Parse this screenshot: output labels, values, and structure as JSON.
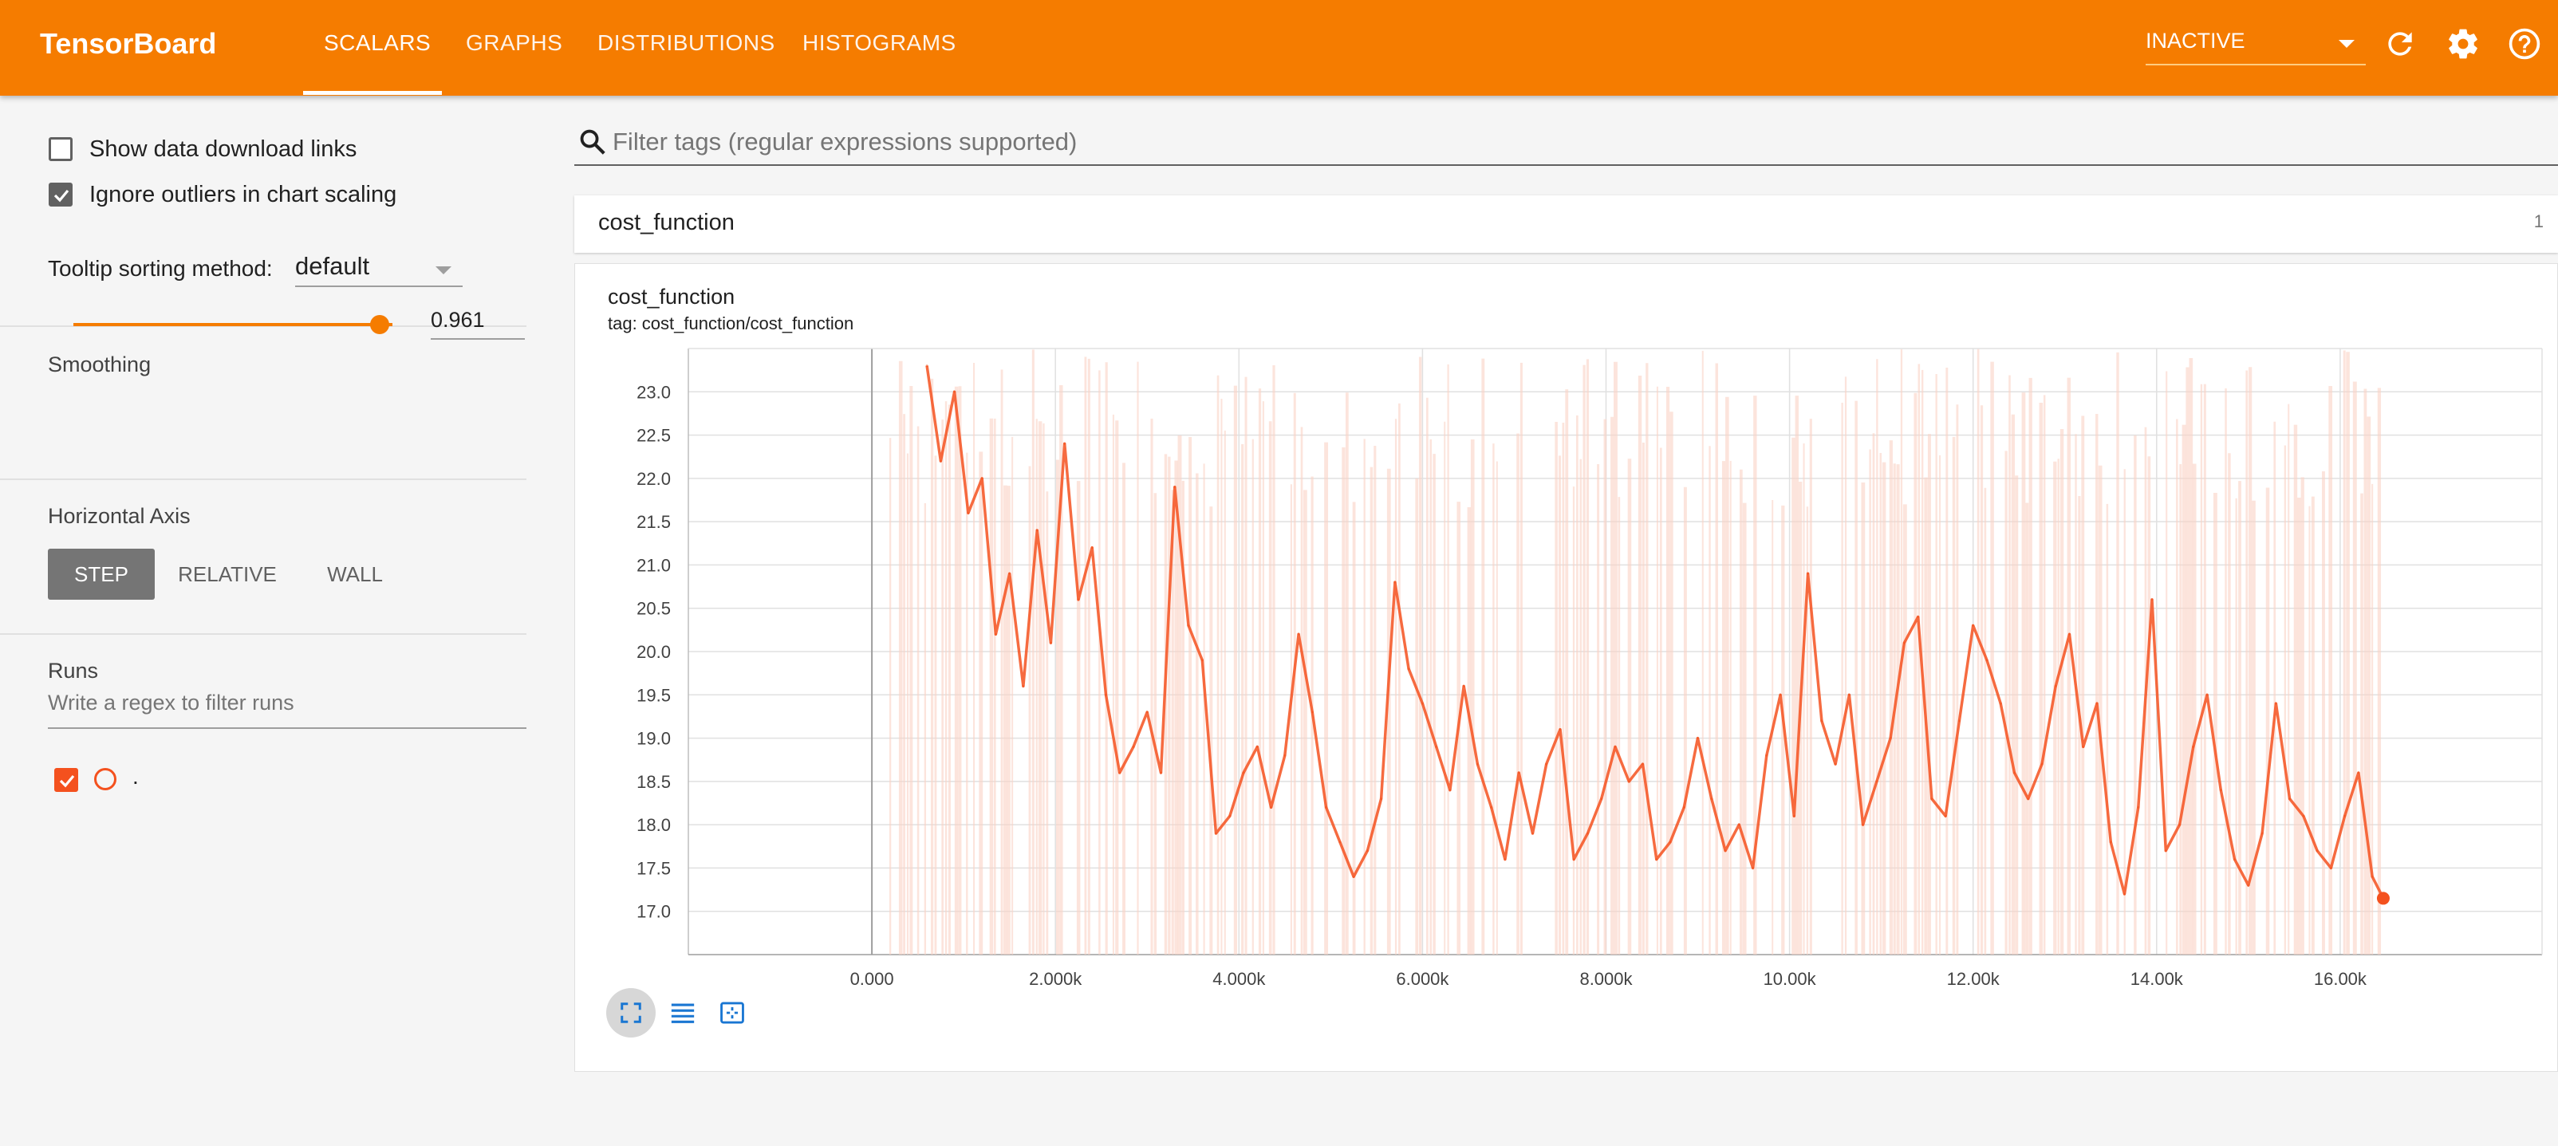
{
  "app": {
    "title": "TensorBoard",
    "tabs": [
      {
        "label": "SCALARS",
        "active": true
      },
      {
        "label": "GRAPHS",
        "active": false
      },
      {
        "label": "DISTRIBUTIONS",
        "active": false
      },
      {
        "label": "HISTOGRAMS",
        "active": false
      }
    ],
    "run_status": "INACTIVE",
    "accent_color": "#f57c00",
    "icons": [
      "refresh-icon",
      "settings-icon",
      "help-icon"
    ]
  },
  "sidebar": {
    "show_download_links": {
      "label": "Show data download links",
      "checked": false
    },
    "ignore_outliers": {
      "label": "Ignore outliers in chart scaling",
      "checked": true
    },
    "tooltip_sorting": {
      "label": "Tooltip sorting method:",
      "value": "default"
    },
    "smoothing": {
      "label": "Smoothing",
      "value": "0.961",
      "level": 0.961
    },
    "horizontal_axis": {
      "label": "Horizontal Axis",
      "options": [
        "STEP",
        "RELATIVE",
        "WALL"
      ],
      "selected": "STEP"
    },
    "runs": {
      "label": "Runs",
      "filter_placeholder": "Write a regex to filter runs",
      "items": [
        {
          "name": ".",
          "checked": true,
          "color": "#f4511e"
        }
      ]
    }
  },
  "main": {
    "filter_placeholder": "Filter tags (regular expressions supported)",
    "group": {
      "name": "cost_function",
      "count": "1"
    },
    "card": {
      "title": "cost_function",
      "tag": "tag: cost_function/cost_function"
    },
    "card_icons": [
      "fit-domain-icon",
      "log-scale-icon",
      "toggle-expand-icon"
    ]
  },
  "chart_data": {
    "type": "line",
    "title": "cost_function",
    "xlabel": "",
    "ylabel": "",
    "xlim": [
      -2000,
      18200
    ],
    "ylim": [
      16.5,
      23.5
    ],
    "x_ticks": [
      "0.000",
      "2.000k",
      "4.000k",
      "6.000k",
      "8.000k",
      "10.00k",
      "12.00k",
      "14.00k",
      "16.00k"
    ],
    "y_ticks": [
      "17.0",
      "17.5",
      "18.0",
      "18.5",
      "19.0",
      "19.5",
      "20.0",
      "20.5",
      "21.0",
      "21.5",
      "22.0",
      "22.5",
      "23.0"
    ],
    "grid": true,
    "series": [
      {
        "name": ".",
        "color": "#f4511e",
        "x": [
          600,
          750,
          900,
          1050,
          1200,
          1350,
          1500,
          1650,
          1800,
          1950,
          2100,
          2250,
          2400,
          2550,
          2700,
          2850,
          3000,
          3150,
          3300,
          3450,
          3600,
          3750,
          3900,
          4050,
          4200,
          4350,
          4500,
          4650,
          4800,
          4950,
          5100,
          5250,
          5400,
          5550,
          5700,
          5850,
          6000,
          6150,
          6300,
          6450,
          6600,
          6750,
          6900,
          7050,
          7200,
          7350,
          7500,
          7650,
          7800,
          7950,
          8100,
          8250,
          8400,
          8550,
          8700,
          8850,
          9000,
          9150,
          9300,
          9450,
          9600,
          9750,
          9900,
          10050,
          10200,
          10350,
          10500,
          10650,
          10800,
          10950,
          11100,
          11250,
          11400,
          11550,
          11700,
          11850,
          12000,
          12150,
          12300,
          12450,
          12600,
          12750,
          12900,
          13050,
          13200,
          13350,
          13500,
          13650,
          13800,
          13950,
          14100,
          14250,
          14400,
          14550,
          14700,
          14850,
          15000,
          15150,
          15300,
          15450,
          15600,
          15750,
          15900,
          16050,
          16200,
          16350,
          16470
        ],
        "values": [
          23.3,
          22.2,
          23.0,
          21.6,
          22.0,
          20.2,
          20.9,
          19.6,
          21.4,
          20.1,
          22.4,
          20.6,
          21.2,
          19.5,
          18.6,
          18.9,
          19.3,
          18.6,
          21.9,
          20.3,
          19.9,
          17.9,
          18.1,
          18.6,
          18.9,
          18.2,
          18.8,
          20.2,
          19.3,
          18.2,
          17.8,
          17.4,
          17.7,
          18.3,
          20.8,
          19.8,
          19.4,
          18.9,
          18.4,
          19.6,
          18.7,
          18.2,
          17.6,
          18.6,
          17.9,
          18.7,
          19.1,
          17.6,
          17.9,
          18.3,
          18.9,
          18.5,
          18.7,
          17.6,
          17.8,
          18.2,
          19.0,
          18.3,
          17.7,
          18.0,
          17.5,
          18.8,
          19.5,
          18.1,
          20.9,
          19.2,
          18.7,
          19.5,
          18.0,
          18.5,
          19.0,
          20.1,
          20.4,
          18.3,
          18.1,
          19.2,
          20.3,
          19.9,
          19.4,
          18.6,
          18.3,
          18.7,
          19.6,
          20.2,
          18.9,
          19.4,
          17.8,
          17.2,
          18.2,
          20.6,
          17.7,
          18.0,
          18.9,
          19.5,
          18.4,
          17.6,
          17.3,
          17.9,
          19.4,
          18.3,
          18.1,
          17.7,
          17.5,
          18.1,
          18.6,
          17.4,
          17.15
        ]
      }
    ]
  }
}
